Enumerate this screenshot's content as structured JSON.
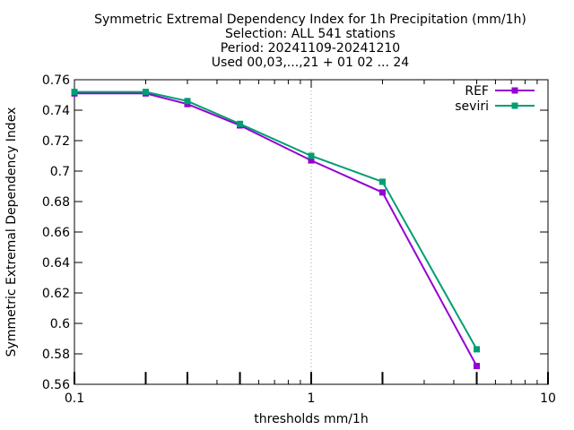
{
  "chart_data": {
    "type": "line",
    "title_lines": [
      "Symmetric Extremal Dependency Index  for 1h Precipitation (mm/1h)",
      "Selection: ALL    541 stations",
      "Period: 20241109-20241210",
      "Used 00,03,...,21 + 01 02 ... 24"
    ],
    "xlabel": "thresholds mm/1h",
    "ylabel": "Symmetric Extremal Dependency Index",
    "x_scale": "log",
    "xlim": [
      0.1,
      10
    ],
    "ylim": [
      0.56,
      0.76
    ],
    "x_ticks": [
      {
        "value": 0.1,
        "label": "0.1"
      },
      {
        "value": 1,
        "label": "1"
      },
      {
        "value": 10,
        "label": "10"
      }
    ],
    "y_ticks": [
      {
        "value": 0.56,
        "label": "0.56"
      },
      {
        "value": 0.58,
        "label": "0.58"
      },
      {
        "value": 0.6,
        "label": "0.6"
      },
      {
        "value": 0.62,
        "label": "0.62"
      },
      {
        "value": 0.64,
        "label": "0.64"
      },
      {
        "value": 0.66,
        "label": "0.66"
      },
      {
        "value": 0.68,
        "label": "0.68"
      },
      {
        "value": 0.7,
        "label": "0.7"
      },
      {
        "value": 0.72,
        "label": "0.72"
      },
      {
        "value": 0.74,
        "label": "0.74"
      },
      {
        "value": 0.76,
        "label": "0.76"
      }
    ],
    "grid": {
      "x_major_dotted": true,
      "y": false
    },
    "legend_position": "top-right",
    "threshold_markers": [
      0.1,
      0.2,
      0.3,
      0.5,
      1,
      2,
      5,
      10
    ],
    "x": [
      0.1,
      0.2,
      0.3,
      0.5,
      1,
      2,
      5
    ],
    "series": [
      {
        "name": "REF",
        "color": "#9400d3",
        "values": [
          0.751,
          0.751,
          0.744,
          0.73,
          0.707,
          0.686,
          0.572
        ]
      },
      {
        "name": "seviri",
        "color": "#009e73",
        "values": [
          0.752,
          0.752,
          0.746,
          0.731,
          0.71,
          0.693,
          0.583
        ]
      }
    ]
  }
}
